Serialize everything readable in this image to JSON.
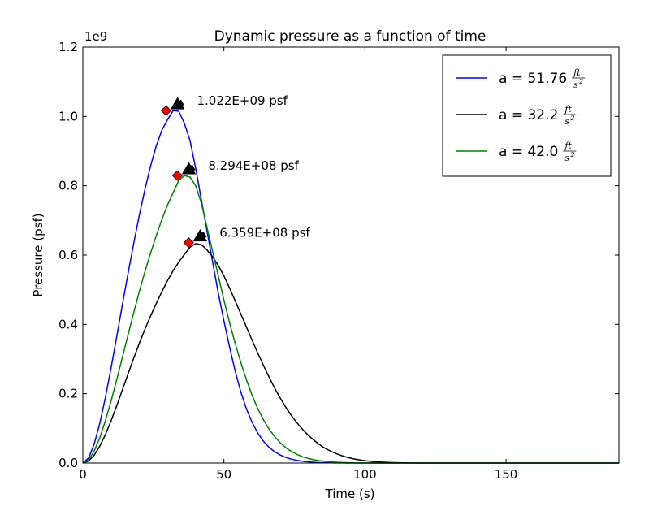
{
  "chart_data": {
    "type": "line",
    "title": "Dynamic pressure as a function of time",
    "xlabel": "Time (s)",
    "ylabel": "Pressure (psf)",
    "y_offset_label": "1e9",
    "xlim": [
      0,
      190
    ],
    "ylim": [
      0.0,
      1.2
    ],
    "x_ticks": [
      0,
      50,
      100,
      150
    ],
    "y_ticks": [
      0.0,
      0.2,
      0.4,
      0.6,
      0.8,
      1.0,
      1.2
    ],
    "x_tick_labels": [
      "0",
      "50",
      "100",
      "150"
    ],
    "y_tick_labels": [
      "0.0",
      "0.2",
      "0.4",
      "0.6",
      "0.8",
      "1.0",
      "1.2"
    ],
    "legend_placement": "top-right",
    "grid": false,
    "x": [
      0,
      2,
      4,
      6,
      8,
      10,
      12,
      14,
      16,
      18,
      20,
      22,
      24,
      26,
      28,
      30,
      32,
      34,
      36,
      38,
      40,
      42,
      44,
      46,
      48,
      50,
      52,
      54,
      56,
      58,
      60,
      62,
      64,
      66,
      68,
      70,
      72,
      74,
      76,
      78,
      80,
      82,
      84,
      86,
      88,
      90,
      92,
      94,
      96,
      98,
      100,
      102,
      104,
      106,
      108,
      110,
      112,
      114,
      116,
      118,
      120,
      122,
      124,
      126,
      128,
      130,
      132,
      134,
      136,
      138,
      140,
      142,
      144,
      146,
      148,
      150,
      152,
      154,
      156,
      158,
      160,
      162,
      164,
      166,
      168,
      170,
      172,
      174,
      176,
      178,
      180,
      182,
      184,
      186,
      188,
      190
    ],
    "series": [
      {
        "legend_prefix": "a = 51.76",
        "legend_unit_num": "ft",
        "legend_unit_den": "s",
        "legend_unit_exp": "2",
        "color": "#0000ff",
        "values": [
          0,
          0.0143,
          0.0541,
          0.1143,
          0.1895,
          0.2744,
          0.3645,
          0.4561,
          0.5462,
          0.6328,
          0.7143,
          0.7895,
          0.8568,
          0.9146,
          0.96,
          0.9905,
          1.0168,
          1.015,
          0.98,
          0.93,
          0.85,
          0.76,
          0.67,
          0.58,
          0.49,
          0.41,
          0.335,
          0.265,
          0.205,
          0.156,
          0.117,
          0.0865,
          0.063,
          0.0455,
          0.0325,
          0.023,
          0.016,
          0.011,
          0.0075,
          0.005,
          0.0033,
          0.0021,
          0.0013,
          0.0008,
          0.0005,
          0.0003,
          0.0002,
          0.0001,
          0.0001,
          5e-05,
          3e-05,
          0,
          0,
          0,
          0,
          0,
          0,
          0,
          0,
          0,
          0,
          0,
          0,
          0,
          0,
          0,
          0,
          0,
          0,
          0,
          0,
          0,
          0,
          0,
          0,
          0,
          0,
          0,
          0,
          0,
          0,
          0,
          0,
          0,
          0,
          0,
          0,
          0,
          0,
          0,
          0,
          0,
          0,
          0,
          0,
          0
        ]
      },
      {
        "legend_prefix": "a = 32.2",
        "legend_unit_num": "ft",
        "legend_unit_den": "s",
        "legend_unit_exp": "2",
        "color": "#000000",
        "values": [
          0,
          0.0059,
          0.0226,
          0.0486,
          0.0823,
          0.1216,
          0.1651,
          0.2107,
          0.2567,
          0.3018,
          0.345,
          0.3858,
          0.424,
          0.46,
          0.494,
          0.526,
          0.555,
          0.58,
          0.602,
          0.623,
          0.633,
          0.63,
          0.615,
          0.595,
          0.57,
          0.54,
          0.505,
          0.468,
          0.43,
          0.392,
          0.354,
          0.317,
          0.282,
          0.248,
          0.216,
          0.187,
          0.16,
          0.136,
          0.115,
          0.096,
          0.0795,
          0.065,
          0.0525,
          0.042,
          0.0335,
          0.0265,
          0.0205,
          0.0158,
          0.012,
          0.009,
          0.0067,
          0.0049,
          0.0035,
          0.0025,
          0.0018,
          0.0012,
          0.0008,
          0.0005,
          0.0003,
          0.0002,
          0.0001,
          8e-05,
          5e-05,
          3e-05,
          2e-05,
          0,
          0,
          0,
          0,
          0,
          0,
          0,
          0,
          0,
          0,
          0,
          0,
          0,
          0,
          0,
          0,
          0,
          0,
          0,
          0,
          0,
          0,
          0,
          0,
          0,
          0,
          0,
          0,
          0,
          0,
          0
        ]
      },
      {
        "legend_prefix": "a = 42.0",
        "legend_unit_num": "ft",
        "legend_unit_den": "s",
        "legend_unit_exp": "2",
        "color": "#008000",
        "values": [
          0,
          0.009,
          0.0343,
          0.0729,
          0.1222,
          0.1787,
          0.2403,
          0.3043,
          0.3689,
          0.4328,
          0.4943,
          0.552,
          0.6055,
          0.6555,
          0.7025,
          0.7445,
          0.78,
          0.815,
          0.8294,
          0.825,
          0.8,
          0.75,
          0.68,
          0.61,
          0.54,
          0.47,
          0.405,
          0.345,
          0.29,
          0.24,
          0.195,
          0.157,
          0.125,
          0.098,
          0.076,
          0.058,
          0.044,
          0.033,
          0.0245,
          0.018,
          0.013,
          0.0093,
          0.0066,
          0.0046,
          0.0032,
          0.0022,
          0.0015,
          0.001,
          0.0006,
          0.0004,
          0.0003,
          0.0002,
          0.0001,
          6e-05,
          4e-05,
          0,
          0,
          0,
          0,
          0,
          0,
          0,
          0,
          0,
          0,
          0,
          0,
          0,
          0,
          0,
          0,
          0,
          0,
          0,
          0,
          0,
          0,
          0,
          0,
          0,
          0,
          0,
          0,
          0,
          0,
          0,
          0,
          0,
          0,
          0,
          0,
          0,
          0,
          0,
          0,
          0
        ]
      }
    ],
    "annotations": [
      {
        "label": "1.022E+09 psf",
        "x": 29.5,
        "y": 1.0168,
        "marker_color": "#ff0000"
      },
      {
        "label": "8.294E+08 psf",
        "x": 33.5,
        "y": 0.8294,
        "marker_color": "#ff0000"
      },
      {
        "label": "6.359E+08 psf",
        "x": 37.5,
        "y": 0.6359,
        "marker_color": "#ff0000"
      }
    ]
  }
}
